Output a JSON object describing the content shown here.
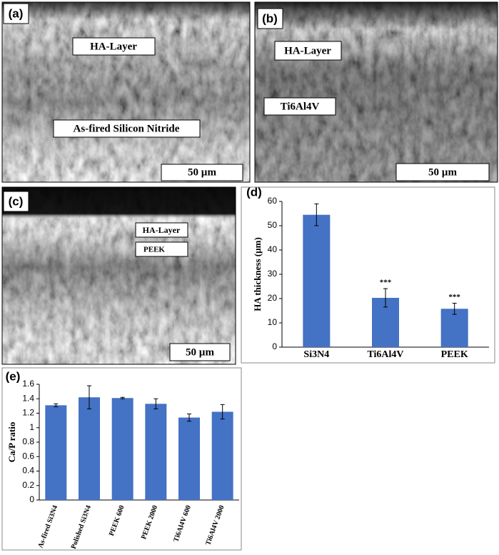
{
  "images": [
    {
      "label": "(a)",
      "annotations": [
        "HA-Layer",
        "As-fired Silicon Nitride"
      ],
      "scale_bar": "50 µm"
    },
    {
      "label": "(b)",
      "annotations": [
        "HA-Layer",
        "Ti6Al4V"
      ],
      "scale_bar": "50 µm"
    },
    {
      "label": "(c)",
      "annotations": [
        "HA-Layer",
        "PEEK"
      ],
      "scale_bar": "50 µm"
    }
  ],
  "chart_data": [
    {
      "type": "bar",
      "panel": "(d)",
      "y_label": "HA thickness (µm)",
      "categories": [
        "Si3N4",
        "Ti6Al4V",
        "PEEK"
      ],
      "values": [
        54.5,
        20.3,
        15.8
      ],
      "errors": [
        4.5,
        3.8,
        2.3
      ],
      "significance": [
        null,
        "***",
        "***"
      ],
      "color": "#4472c4",
      "ylim": [
        0,
        60
      ],
      "yticks": [
        0,
        10,
        20,
        30,
        40,
        50,
        60
      ],
      "grid": false
    },
    {
      "type": "bar",
      "panel": "(e)",
      "y_label": "Ca/P ratio",
      "categories": [
        "As-fired Si3N4",
        "Polished Si3N4",
        "PEEK 600",
        "PEEK 2000",
        "Ti6Al4V 600",
        "Ti6Al4V 2000"
      ],
      "values": [
        1.31,
        1.42,
        1.41,
        1.33,
        1.14,
        1.22
      ],
      "errors": [
        0.02,
        0.16,
        0.01,
        0.07,
        0.05,
        0.1
      ],
      "color": "#4472c4",
      "ylim": [
        0,
        1.6
      ],
      "yticks": [
        0,
        0.2,
        0.4,
        0.6,
        0.8,
        1,
        1.2,
        1.4,
        1.6
      ],
      "grid": false
    }
  ]
}
